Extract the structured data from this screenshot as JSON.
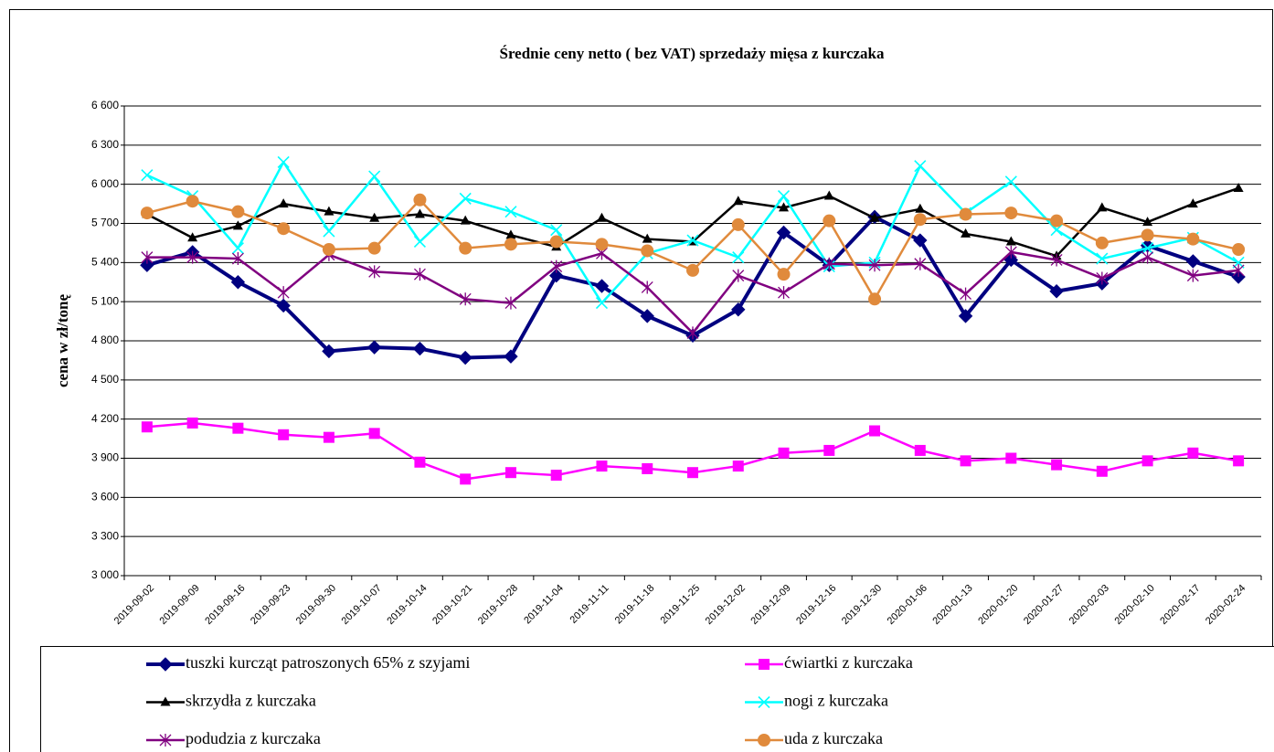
{
  "chart_data": {
    "type": "line",
    "title": "Średnie ceny netto ( bez VAT) sprzedaży mięsa z kurczaka",
    "y_label": "cena w zł/tonę",
    "categories": [
      "2019-09-02",
      "2019-09-09",
      "2019-09-16",
      "2019-09-23",
      "2019-09-30",
      "2019-10-07",
      "2019-10-14",
      "2019-10-21",
      "2019-10-28",
      "2019-11-04",
      "2019-11-11",
      "2019-11-18",
      "2019-11-25",
      "2019-12-02",
      "2019-12-09",
      "2019-12-16",
      "2019-12-30",
      "2020-01-06",
      "2020-01-13",
      "2020-01-20",
      "2020-01-27",
      "2020-02-03",
      "2020-02-10",
      "2020-02-17",
      "2020-02-24"
    ],
    "ylim": [
      3000,
      6600
    ],
    "yticks": [
      {
        "value": 3000,
        "label": "3 000"
      },
      {
        "value": 3300,
        "label": "3 300"
      },
      {
        "value": 3600,
        "label": "3 600"
      },
      {
        "value": 3900,
        "label": "3 900"
      },
      {
        "value": 4200,
        "label": "4 200"
      },
      {
        "value": 4500,
        "label": "4 500"
      },
      {
        "value": 4800,
        "label": "4 800"
      },
      {
        "value": 5100,
        "label": "5 100"
      },
      {
        "value": 5400,
        "label": "5 400"
      },
      {
        "value": 5700,
        "label": "5 700"
      },
      {
        "value": 6000,
        "label": "6 000"
      },
      {
        "value": 6300,
        "label": "6 300"
      },
      {
        "value": 6600,
        "label": "6 600"
      }
    ],
    "grid": true,
    "legend": "bottom",
    "series": [
      {
        "name": "tuszki kurcząt patroszonych 65% z szyjami",
        "color": "#000080",
        "marker": "diamond",
        "values": [
          5380,
          5480,
          5250,
          5070,
          4720,
          4750,
          4740,
          4670,
          4680,
          5300,
          5220,
          4990,
          4840,
          5040,
          5630,
          5380,
          5750,
          5570,
          4990,
          5420,
          5180,
          5240,
          5530,
          5410,
          5290
        ]
      },
      {
        "name": "ćwiartki z kurczaka",
        "color": "#ff00ff",
        "marker": "square",
        "values": [
          4140,
          4170,
          4130,
          4080,
          4060,
          4090,
          3870,
          3740,
          3790,
          3770,
          3840,
          3820,
          3790,
          3840,
          3940,
          3960,
          4110,
          3960,
          3880,
          3900,
          3850,
          3800,
          3880,
          3940,
          3880
        ]
      },
      {
        "name": "skrzydła z kurczaka",
        "color": "#000000",
        "marker": "triangle",
        "values": [
          5770,
          5590,
          5680,
          5850,
          5790,
          5740,
          5770,
          5720,
          5610,
          5520,
          5740,
          5580,
          5560,
          5870,
          5820,
          5910,
          5740,
          5810,
          5620,
          5560,
          5450,
          5820,
          5710,
          5850,
          5970
        ]
      },
      {
        "name": "nogi z kurczaka",
        "color": "#00ffff",
        "marker": "cross",
        "values": [
          6070,
          5910,
          5510,
          6170,
          5640,
          6060,
          5560,
          5890,
          5790,
          5650,
          5090,
          5470,
          5570,
          5440,
          5910,
          5370,
          5400,
          6140,
          5780,
          6020,
          5650,
          5430,
          5510,
          5590,
          5400
        ]
      },
      {
        "name": "podudzia z kurczaka",
        "color": "#800080",
        "marker": "asterisk",
        "values": [
          5440,
          5440,
          5430,
          5170,
          5460,
          5330,
          5310,
          5120,
          5090,
          5370,
          5470,
          5210,
          4860,
          5300,
          5170,
          5390,
          5380,
          5390,
          5160,
          5480,
          5420,
          5280,
          5440,
          5300,
          5340
        ]
      },
      {
        "name": "uda z kurczaka",
        "color": "#e08a3c",
        "marker": "circle",
        "values": [
          5780,
          5870,
          5790,
          5660,
          5500,
          5510,
          5880,
          5510,
          5540,
          5560,
          5540,
          5490,
          5340,
          5690,
          5310,
          5720,
          5120,
          5730,
          5770,
          5780,
          5720,
          5550,
          5610,
          5580,
          5500
        ]
      }
    ]
  }
}
